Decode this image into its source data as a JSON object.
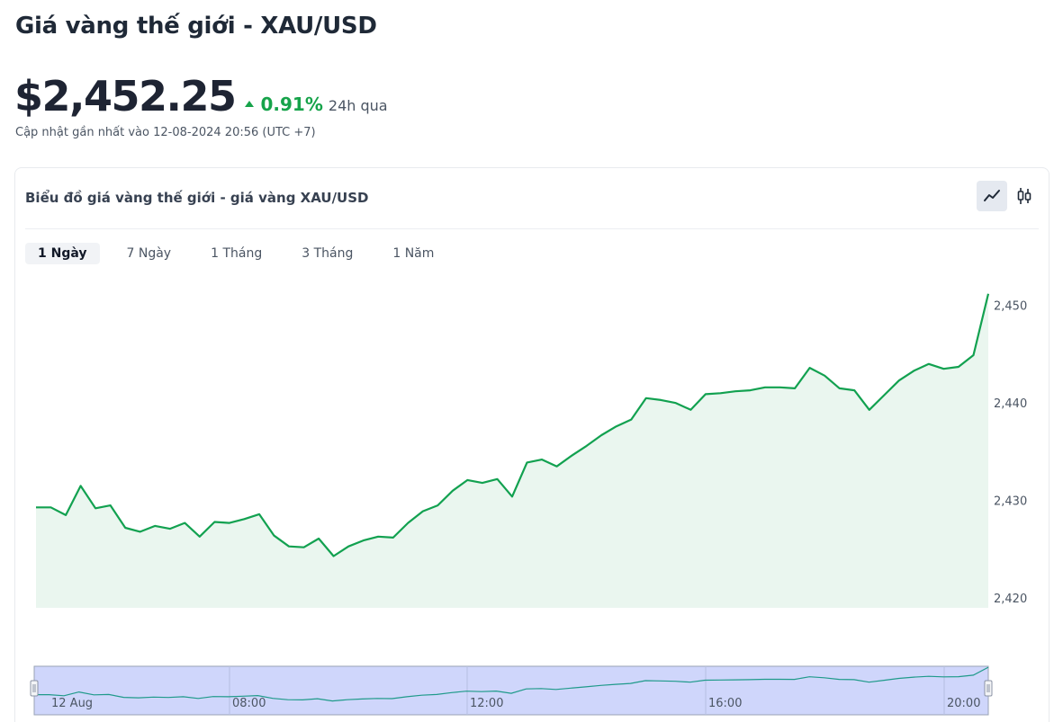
{
  "header": {
    "title": "Giá vàng thế giới - XAU/USD",
    "price": "$2,452.25",
    "change_pct": "0.91%",
    "change_period": "24h qua",
    "updated": "Cập nhật gần nhất vào 12-08-2024 20:56 (UTC +7)"
  },
  "card": {
    "title": "Biểu đồ giá vàng thế giới - giá vàng XAU/USD",
    "toggles": [
      {
        "name": "line-chart-icon",
        "active": true
      },
      {
        "name": "candlestick-icon",
        "active": false
      }
    ],
    "tabs": [
      {
        "label": "1 Ngày",
        "active": true
      },
      {
        "label": "7 Ngày",
        "active": false
      },
      {
        "label": "1 Tháng",
        "active": false
      },
      {
        "label": "3 Tháng",
        "active": false
      },
      {
        "label": "1 Năm",
        "active": false
      }
    ]
  },
  "colors": {
    "line": "#12a150",
    "area": "#eaf6ef",
    "navigator_fill": "#cfd6fb",
    "up": "#16a34a"
  },
  "chart_data": {
    "type": "area",
    "title": "",
    "xlabel": "",
    "ylabel": "",
    "ylim": [
      2419,
      2452
    ],
    "yticks": [
      2420,
      2430,
      2440,
      2450
    ],
    "ytick_labels": [
      "2,420",
      "2,430",
      "2,440",
      "2,450"
    ],
    "series": [
      {
        "values": [
          2429.3,
          2429.3,
          2428.5,
          2431.5,
          2429.2,
          2429.5,
          2427.2,
          2426.8,
          2427.4,
          2427.1,
          2427.7,
          2426.3,
          2427.8,
          2427.7,
          2428.1,
          2428.6,
          2426.4,
          2425.3,
          2425.2,
          2426.1,
          2424.3,
          2425.3,
          2425.9,
          2426.3,
          2426.2,
          2427.7,
          2428.9,
          2429.5,
          2431.0,
          2432.1,
          2431.8,
          2432.2,
          2430.4,
          2433.9,
          2434.2,
          2433.5,
          2434.6,
          2435.6,
          2436.7,
          2437.6,
          2438.3,
          2440.5,
          2440.3,
          2440.0,
          2439.3,
          2440.9,
          2441.0,
          2441.2,
          2441.3,
          2441.6,
          2441.6,
          2441.5,
          2443.6,
          2442.8,
          2441.5,
          2441.3,
          2439.3,
          2440.8,
          2442.3,
          2443.3,
          2444.0,
          2443.5,
          2443.7,
          2444.9,
          2451.2
        ]
      }
    ],
    "navigator": {
      "x_labels": [
        "12 Aug",
        "08:00",
        "12:00",
        "16:00",
        "20:00"
      ]
    }
  }
}
